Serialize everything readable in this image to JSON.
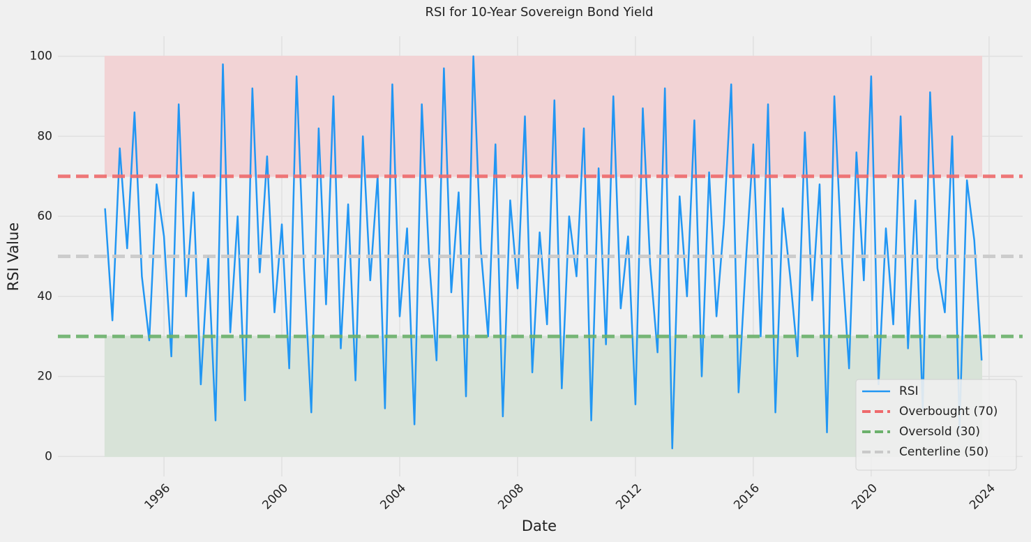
{
  "chart_data": {
    "type": "line",
    "title": "RSI for 10-Year Sovereign Bond Yield",
    "x_label": "Date",
    "y_label": "RSI Value",
    "x": [
      1994,
      1994.25,
      1994.5,
      1994.75,
      1995,
      1995.25,
      1995.5,
      1995.75,
      1996,
      1996.25,
      1996.5,
      1996.75,
      1997,
      1997.25,
      1997.5,
      1997.75,
      1998,
      1998.25,
      1998.5,
      1998.75,
      1999,
      1999.25,
      1999.5,
      1999.75,
      2000,
      2000.25,
      2000.5,
      2000.75,
      2001,
      2001.25,
      2001.5,
      2001.75,
      2002,
      2002.25,
      2002.5,
      2002.75,
      2003,
      2003.25,
      2003.5,
      2003.75,
      2004,
      2004.25,
      2004.5,
      2004.75,
      2005,
      2005.25,
      2005.5,
      2005.75,
      2006,
      2006.25,
      2006.5,
      2006.75,
      2007,
      2007.25,
      2007.5,
      2007.75,
      2008,
      2008.25,
      2008.5,
      2008.75,
      2009,
      2009.25,
      2009.5,
      2009.75,
      2010,
      2010.25,
      2010.5,
      2010.75,
      2011,
      2011.25,
      2011.5,
      2011.75,
      2012,
      2012.25,
      2012.5,
      2012.75,
      2013,
      2013.25,
      2013.5,
      2013.75,
      2014,
      2014.25,
      2014.5,
      2014.75,
      2015,
      2015.25,
      2015.5,
      2015.75,
      2016,
      2016.25,
      2016.5,
      2016.75,
      2017,
      2017.25,
      2017.5,
      2017.75,
      2018,
      2018.25,
      2018.5,
      2018.75,
      2019,
      2019.25,
      2019.5,
      2019.75,
      2020,
      2020.25,
      2020.5,
      2020.75,
      2021,
      2021.25,
      2021.5,
      2021.75,
      2022,
      2022.25,
      2022.5,
      2022.75,
      2023,
      2023.25,
      2023.5,
      2023.75
    ],
    "series": [
      {
        "name": "RSI",
        "color": "#2196f3",
        "values": [
          62,
          34,
          77,
          52,
          86,
          45,
          29,
          68,
          55,
          25,
          88,
          40,
          66,
          18,
          50,
          9,
          98,
          31,
          60,
          14,
          92,
          46,
          75,
          36,
          58,
          22,
          95,
          47,
          11,
          82,
          38,
          90,
          27,
          63,
          19,
          80,
          44,
          70,
          12,
          93,
          35,
          57,
          8,
          88,
          49,
          24,
          97,
          41,
          66,
          15,
          100,
          52,
          30,
          78,
          10,
          64,
          42,
          85,
          21,
          56,
          33,
          89,
          17,
          60,
          45,
          82,
          9,
          72,
          28,
          90,
          37,
          55,
          13,
          87,
          48,
          26,
          92,
          2,
          65,
          40,
          84,
          20,
          71,
          35,
          58,
          93,
          16,
          49,
          78,
          30,
          88,
          11,
          62,
          45,
          25,
          81,
          39,
          68,
          6,
          90,
          50,
          22,
          76,
          44,
          95,
          18,
          57,
          33,
          85,
          27,
          64,
          12,
          91,
          47,
          36,
          80,
          7,
          69,
          54,
          24
        ]
      }
    ],
    "reference_lines": [
      {
        "name": "Overbought (70)",
        "value": 70,
        "color": "#ee6a6c"
      },
      {
        "name": "Oversold (30)",
        "value": 30,
        "color": "#6cb16c"
      },
      {
        "name": "Centerline (50)",
        "value": 50,
        "color": "#c9c9c9"
      }
    ],
    "bands": [
      {
        "from": 70,
        "to": 100,
        "color": "#f2d3d5"
      },
      {
        "from": 0,
        "to": 30,
        "color": "#d8e3d8"
      }
    ],
    "xlim": [
      1992.4,
      2025.14
    ],
    "xticks": [
      1996,
      2000,
      2004,
      2008,
      2012,
      2016,
      2020,
      2024
    ],
    "ylim": [
      -5,
      105
    ],
    "yticks": [
      0,
      20,
      40,
      60,
      80,
      100
    ],
    "grid": true,
    "legend": "lower right"
  }
}
